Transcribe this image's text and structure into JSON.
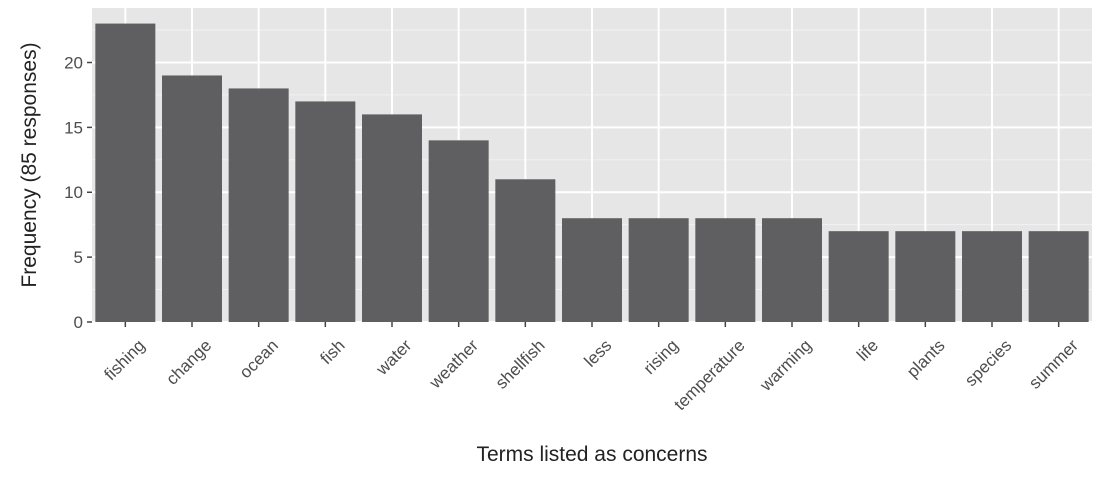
{
  "chart_data": {
    "type": "bar",
    "categories": [
      "fishing",
      "change",
      "ocean",
      "fish",
      "water",
      "weather",
      "shellfish",
      "less",
      "rising",
      "temperature",
      "warming",
      "life",
      "plants",
      "species",
      "summer"
    ],
    "values": [
      23,
      19,
      18,
      17,
      16,
      14,
      11,
      8,
      8,
      8,
      8,
      7,
      7,
      7,
      7
    ],
    "xlabel": "Terms listed as concerns",
    "ylabel": "Frequency (85 responses)",
    "ylim": [
      0,
      24.2
    ],
    "yticks": [
      0,
      5,
      10,
      15,
      20
    ],
    "grid": true,
    "legend": "none",
    "colors": {
      "bar": "#5f5f61",
      "panel": "#e6e6e6",
      "grid_major": "#ffffff",
      "grid_minor": "#f1f1f1"
    }
  }
}
